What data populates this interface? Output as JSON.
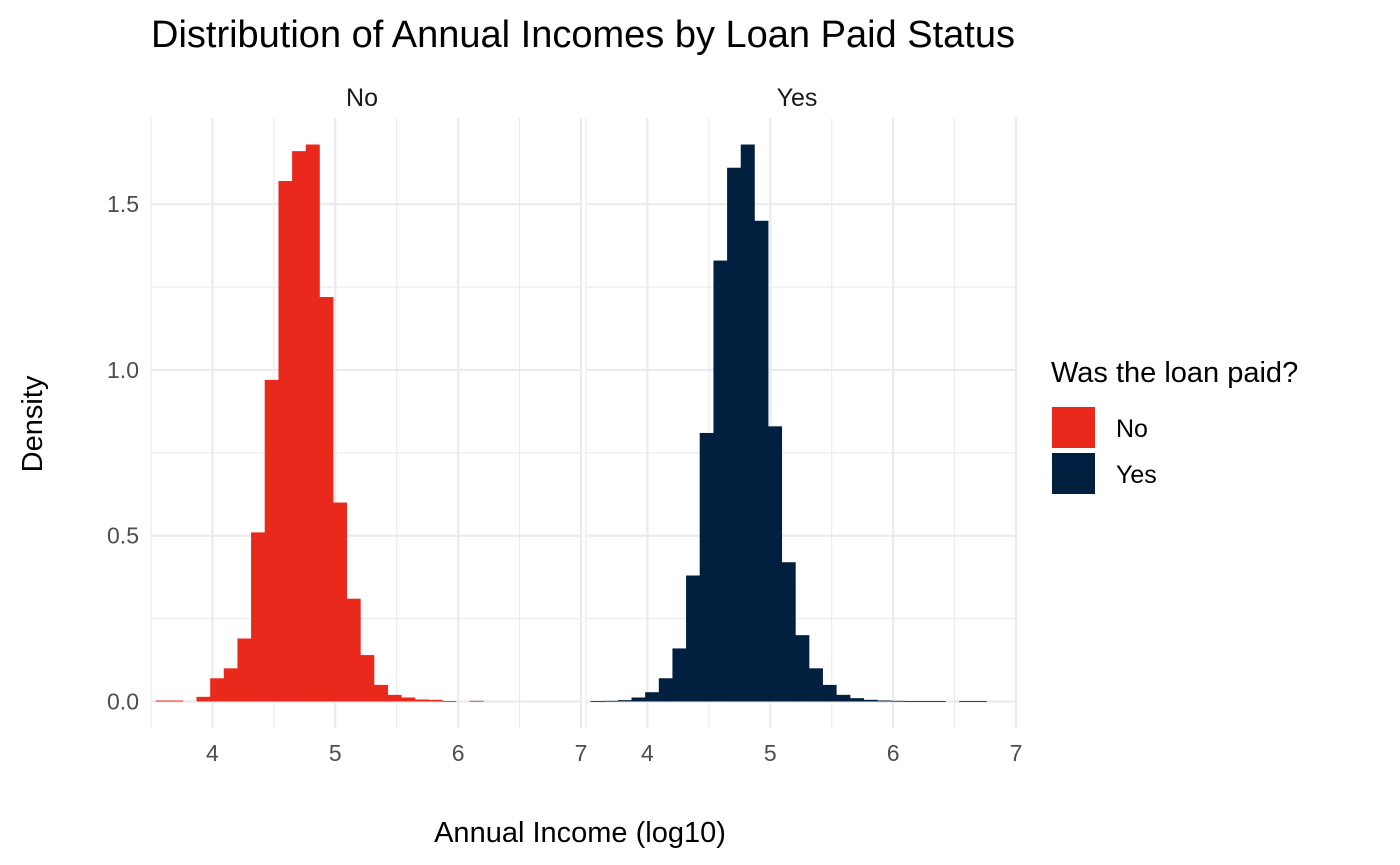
{
  "chart_data": {
    "type": "bar",
    "subtype": "faceted histogram",
    "title": "Distribution of Annual Incomes by Loan Paid Status",
    "xlabel": "Annual Income (log10)",
    "ylabel": "Density",
    "xlim": [
      3.5,
      7.0
    ],
    "ylim": [
      -0.08,
      1.76
    ],
    "x_ticks": [
      "4",
      "5",
      "6",
      "7"
    ],
    "y_ticks": [
      "0.0",
      "0.5",
      "1.0",
      "1.5"
    ],
    "x_tick_values": [
      4,
      5,
      6,
      7
    ],
    "y_tick_values": [
      0,
      0.5,
      1.0,
      1.5
    ],
    "bin_width": 0.111,
    "grid": true,
    "legend": {
      "title": "Was the loan paid?",
      "position": "right",
      "entries": [
        {
          "label": "No",
          "color": "#E8291C"
        },
        {
          "label": "Yes",
          "color": "#011F3F"
        }
      ]
    },
    "facets": [
      {
        "label": "No",
        "color": "#E8291C",
        "bins_x": [
          3.593,
          3.704,
          3.815,
          3.926,
          4.037,
          4.148,
          4.259,
          4.37,
          4.481,
          4.593,
          4.704,
          4.815,
          4.926,
          5.037,
          5.148,
          5.259,
          5.37,
          5.481,
          5.593,
          5.704,
          5.815,
          5.926,
          6.037,
          6.148
        ],
        "values": [
          0.003,
          0.003,
          0.0,
          0.014,
          0.07,
          0.1,
          0.19,
          0.51,
          0.97,
          1.57,
          1.66,
          1.68,
          1.22,
          0.6,
          0.31,
          0.14,
          0.05,
          0.02,
          0.012,
          0.006,
          0.005,
          0.001,
          0.0,
          0.002
        ]
      },
      {
        "label": "Yes",
        "color": "#011F3F",
        "bins_x": [
          3.593,
          3.704,
          3.815,
          3.926,
          4.037,
          4.148,
          4.259,
          4.37,
          4.481,
          4.593,
          4.704,
          4.815,
          4.926,
          5.037,
          5.148,
          5.259,
          5.37,
          5.481,
          5.593,
          5.704,
          5.815,
          5.926,
          6.037,
          6.148,
          6.259,
          6.37,
          6.481,
          6.593,
          6.704,
          6.815
        ],
        "values": [
          0.001,
          0.002,
          0.004,
          0.012,
          0.028,
          0.07,
          0.16,
          0.38,
          0.81,
          1.33,
          1.61,
          1.68,
          1.45,
          0.83,
          0.42,
          0.2,
          0.1,
          0.05,
          0.02,
          0.01,
          0.005,
          0.003,
          0.002,
          0.001,
          0.001,
          0.001,
          0.0,
          0.001,
          0.001,
          0.0
        ]
      }
    ]
  }
}
